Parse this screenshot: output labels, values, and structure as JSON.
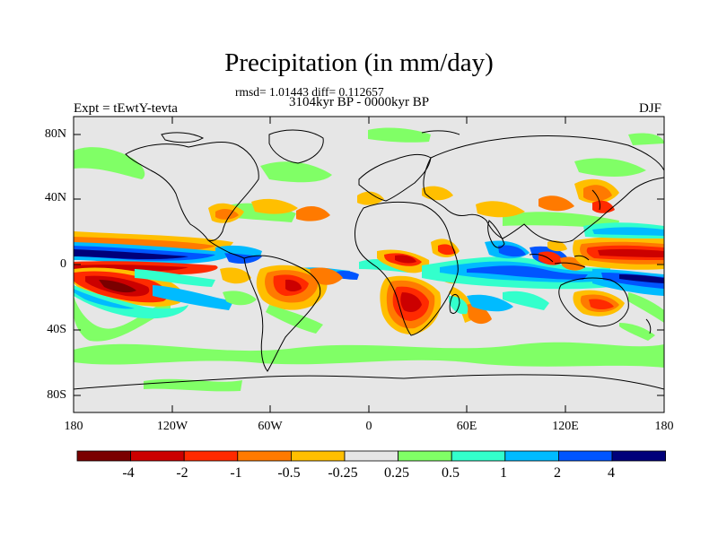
{
  "title": "Precipitation (in mm/day)",
  "stats": "rmsd= 1.01443 diff= 0.112657",
  "subtitle": "3104kyr BP - 0000kyr BP",
  "expt": "Expt = tEwtY-tevta",
  "season": "DJF",
  "lat_ticks": [
    "80N",
    "40N",
    "0",
    "40S",
    "80S"
  ],
  "lon_ticks": [
    "180",
    "120W",
    "60W",
    "0",
    "60E",
    "120E",
    "180"
  ],
  "colorbar": {
    "labels": [
      "-4",
      "-2",
      "-1",
      "-0.5",
      "-0.25",
      "0.25",
      "0.5",
      "1",
      "2",
      "4"
    ],
    "colors": [
      "#7a0000",
      "#cc0000",
      "#ff2a00",
      "#ff7a00",
      "#ffbf00",
      "#e6e6e6",
      "#80ff66",
      "#33ffcc",
      "#00bbff",
      "#0055ff",
      "#00007a"
    ]
  }
}
